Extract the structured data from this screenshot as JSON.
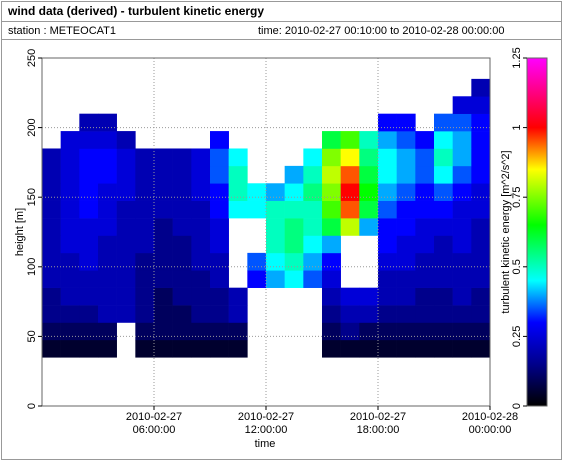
{
  "chart_data": {
    "type": "heatmap",
    "title": "wind data (derived) - turbulent kinetic energy",
    "station": "station : METEOCAT1",
    "period": "time: 2010-02-27 00:10:00 to 2010-02-28 00:00:00",
    "xlabel": "time",
    "ylabel": "height [m]",
    "xlim": [
      0,
      24
    ],
    "xticks": [
      {
        "value": 6,
        "label": "2010-02-27 06:00:00"
      },
      {
        "value": 12,
        "label": "2010-02-27 12:00:00"
      },
      {
        "value": 18,
        "label": "2010-02-27 18:00:00"
      },
      {
        "value": 24,
        "label": "2010-02-28 00:00:00"
      }
    ],
    "ylim": [
      0,
      250
    ],
    "yticks": [
      0,
      50,
      100,
      150,
      200,
      250
    ],
    "grid": true,
    "x_bins": [
      0,
      1,
      2,
      3,
      4,
      5,
      6,
      7,
      8,
      9,
      10,
      11,
      12,
      13,
      14,
      15,
      16,
      17,
      18,
      19,
      20,
      21,
      22,
      23,
      24
    ],
    "y_bins": [
      35,
      47.5,
      60,
      72.5,
      85,
      97.5,
      110,
      122.5,
      135,
      147.5,
      160,
      172.5,
      185,
      197.5,
      210,
      222.5,
      235
    ],
    "values": [
      [
        0.05,
        0.05,
        0.05,
        0.05,
        null,
        0.05,
        0.05,
        0.05,
        0.05,
        0.05,
        0.05,
        null,
        null,
        null,
        null,
        0.05,
        0.05,
        0.05,
        0.05,
        0.05,
        0.05,
        0.05,
        0.05,
        0.05
      ],
      [
        0.1,
        0.1,
        0.1,
        0.1,
        null,
        0.1,
        0.1,
        0.1,
        0.1,
        0.1,
        0.1,
        null,
        null,
        null,
        null,
        0.1,
        0.15,
        0.1,
        0.1,
        0.1,
        0.1,
        0.1,
        0.1,
        0.1
      ],
      [
        0.15,
        0.15,
        0.15,
        0.2,
        0.2,
        0.15,
        0.1,
        0.1,
        0.15,
        0.15,
        0.2,
        null,
        null,
        null,
        null,
        0.15,
        0.2,
        0.2,
        0.15,
        0.15,
        0.15,
        0.15,
        0.15,
        0.15
      ],
      [
        0.15,
        0.2,
        0.2,
        0.2,
        0.2,
        0.15,
        0.1,
        0.15,
        0.15,
        0.15,
        0.2,
        null,
        null,
        null,
        null,
        0.2,
        0.25,
        0.25,
        0.2,
        0.2,
        0.15,
        0.15,
        0.2,
        0.15
      ],
      [
        0.2,
        0.2,
        0.2,
        0.2,
        0.2,
        0.15,
        0.15,
        0.15,
        0.15,
        0.2,
        null,
        0.3,
        0.4,
        0.45,
        0.35,
        0.25,
        null,
        null,
        0.2,
        0.2,
        0.2,
        0.2,
        0.2,
        0.2
      ],
      [
        0.2,
        0.2,
        0.25,
        0.2,
        0.2,
        0.15,
        0.15,
        0.15,
        0.2,
        0.2,
        null,
        0.35,
        0.45,
        0.5,
        0.4,
        0.3,
        null,
        null,
        0.25,
        0.25,
        0.2,
        0.2,
        0.2,
        0.2
      ],
      [
        0.2,
        0.25,
        0.25,
        0.2,
        0.2,
        0.2,
        0.15,
        0.15,
        0.2,
        0.25,
        null,
        null,
        0.5,
        0.55,
        0.45,
        0.4,
        null,
        null,
        0.3,
        0.25,
        0.25,
        0.2,
        0.25,
        0.2
      ],
      [
        0.2,
        0.25,
        0.25,
        0.25,
        0.2,
        0.2,
        0.15,
        0.2,
        0.2,
        0.25,
        null,
        null,
        0.5,
        0.55,
        0.5,
        0.6,
        0.8,
        0.4,
        0.3,
        0.3,
        0.25,
        0.25,
        0.25,
        0.2
      ],
      [
        0.2,
        0.25,
        0.3,
        0.25,
        0.2,
        0.2,
        0.2,
        0.2,
        0.2,
        0.3,
        0.45,
        0.45,
        0.5,
        0.5,
        0.5,
        0.7,
        0.95,
        0.6,
        0.35,
        0.3,
        0.3,
        0.3,
        0.25,
        0.25
      ],
      [
        0.2,
        0.25,
        0.3,
        0.25,
        0.25,
        0.2,
        0.2,
        0.2,
        0.25,
        0.3,
        0.5,
        0.45,
        0.4,
        0.45,
        0.55,
        0.75,
        1.0,
        0.65,
        0.4,
        0.35,
        0.3,
        0.35,
        0.3,
        0.25
      ],
      [
        0.2,
        0.25,
        0.3,
        0.3,
        0.25,
        0.2,
        0.2,
        0.2,
        0.25,
        0.35,
        0.5,
        null,
        null,
        0.4,
        0.5,
        0.8,
        0.95,
        0.6,
        0.45,
        0.4,
        0.35,
        0.45,
        0.35,
        0.3
      ],
      [
        0.2,
        0.25,
        0.3,
        0.3,
        0.25,
        0.2,
        0.2,
        0.2,
        0.25,
        0.35,
        0.45,
        null,
        null,
        null,
        0.45,
        0.75,
        0.85,
        0.55,
        0.45,
        0.4,
        0.35,
        0.5,
        0.4,
        0.3
      ],
      [
        null,
        0.25,
        0.25,
        0.25,
        0.2,
        null,
        null,
        null,
        null,
        0.3,
        null,
        null,
        null,
        null,
        null,
        0.6,
        0.7,
        0.5,
        0.4,
        0.35,
        0.3,
        0.45,
        0.4,
        0.3
      ],
      [
        null,
        null,
        0.2,
        0.2,
        null,
        null,
        null,
        null,
        null,
        null,
        null,
        null,
        null,
        null,
        null,
        null,
        null,
        null,
        0.3,
        0.3,
        null,
        0.35,
        0.35,
        0.3
      ],
      [
        null,
        null,
        null,
        null,
        null,
        null,
        null,
        null,
        null,
        null,
        null,
        null,
        null,
        null,
        null,
        null,
        null,
        null,
        null,
        null,
        null,
        null,
        0.25,
        0.25
      ],
      [
        null,
        null,
        null,
        null,
        null,
        null,
        null,
        null,
        null,
        null,
        null,
        null,
        null,
        null,
        null,
        null,
        null,
        null,
        null,
        null,
        null,
        null,
        null,
        0.2
      ]
    ],
    "colorscale": [
      [
        0,
        "#000000"
      ],
      [
        0.15,
        "#00008b"
      ],
      [
        0.3,
        "#0000ff"
      ],
      [
        0.45,
        "#00ffff"
      ],
      [
        0.65,
        "#00ff00"
      ],
      [
        0.85,
        "#ffff00"
      ],
      [
        1.0,
        "#ff0000"
      ],
      [
        1.25,
        "#ff00ff"
      ]
    ],
    "colorbar": {
      "label": "turbulent kinetic energy [m^2/s^2]",
      "lim": [
        0,
        1.25
      ],
      "ticks": [
        0,
        0.25,
        0.5,
        0.75,
        1,
        1.25
      ]
    }
  }
}
